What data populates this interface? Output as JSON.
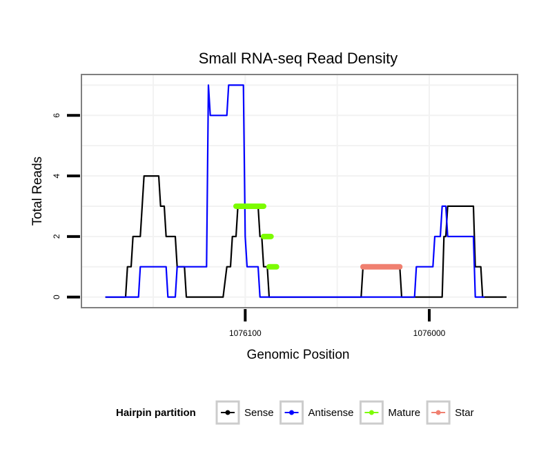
{
  "chart_data": {
    "type": "line",
    "title": "Small RNA-seq Read Density",
    "xlabel": "Genomic Position",
    "ylabel": "Total Reads",
    "x_reversed": true,
    "xlim": [
      1076189,
      1075952
    ],
    "ylim": [
      -0.35,
      7.35
    ],
    "x_ticks": [
      1076100,
      1076000
    ],
    "x_tick_labels": [
      "1076100",
      "1076000"
    ],
    "y_ticks": [
      0,
      2,
      4,
      6
    ],
    "y_tick_labels": [
      "0",
      "2",
      "4",
      "6"
    ],
    "grid": true,
    "legend_position": "bottom",
    "legend": {
      "title": "Hairpin partition",
      "items": [
        {
          "label": "Sense",
          "color": "#000000"
        },
        {
          "label": "Antisense",
          "color": "#0000ff"
        },
        {
          "label": "Mature",
          "color": "#7cfc00"
        },
        {
          "label": "Star",
          "color": "#f08070"
        }
      ]
    },
    "series": [
      {
        "name": "Sense",
        "color": "#000000",
        "points": [
          [
            1076176,
            0
          ],
          [
            1076165,
            0
          ],
          [
            1076164,
            1
          ],
          [
            1076162,
            1
          ],
          [
            1076161,
            2
          ],
          [
            1076157,
            2
          ],
          [
            1076156,
            3
          ],
          [
            1076155,
            4
          ],
          [
            1076147,
            4
          ],
          [
            1076146,
            3
          ],
          [
            1076144,
            3
          ],
          [
            1076143,
            2
          ],
          [
            1076138,
            2
          ],
          [
            1076137,
            1
          ],
          [
            1076133,
            1
          ],
          [
            1076132,
            0
          ],
          [
            1076112,
            0
          ],
          [
            1076110,
            1
          ],
          [
            1076108,
            1
          ],
          [
            1076107,
            2
          ],
          [
            1076105,
            2
          ],
          [
            1076104,
            3
          ],
          [
            1076103,
            3
          ],
          [
            1076101,
            3
          ],
          [
            1076093,
            3
          ],
          [
            1076092,
            2
          ],
          [
            1076091,
            2
          ],
          [
            1076090,
            1
          ],
          [
            1076088,
            1
          ],
          [
            1076087,
            0
          ],
          [
            1076037,
            0
          ],
          [
            1076036,
            1
          ],
          [
            1076016,
            1
          ],
          [
            1076015,
            0
          ],
          [
            1075993,
            0
          ],
          [
            1075992,
            2
          ],
          [
            1075991,
            2
          ],
          [
            1075990,
            3
          ],
          [
            1075989,
            3
          ],
          [
            1075976,
            3
          ],
          [
            1075975,
            1
          ],
          [
            1075972,
            1
          ],
          [
            1075971,
            0
          ],
          [
            1075958,
            0
          ]
        ]
      },
      {
        "name": "Antisense",
        "color": "#0000ff",
        "points": [
          [
            1076176,
            0
          ],
          [
            1076165,
            0
          ],
          [
            1076158,
            0
          ],
          [
            1076157,
            1
          ],
          [
            1076143,
            1
          ],
          [
            1076142,
            0
          ],
          [
            1076138,
            0
          ],
          [
            1076137,
            1
          ],
          [
            1076121,
            1
          ],
          [
            1076120,
            7
          ],
          [
            1076119,
            6
          ],
          [
            1076110,
            6
          ],
          [
            1076109,
            7
          ],
          [
            1076101,
            7
          ],
          [
            1076100,
            2
          ],
          [
            1076099,
            1
          ],
          [
            1076093,
            1
          ],
          [
            1076092,
            0
          ],
          [
            1076036,
            0
          ],
          [
            1076015,
            0
          ],
          [
            1076008,
            0
          ],
          [
            1076007,
            1
          ],
          [
            1075998,
            1
          ],
          [
            1075997,
            2
          ],
          [
            1075994,
            2
          ],
          [
            1075993,
            3
          ],
          [
            1075991,
            3
          ],
          [
            1075990,
            2
          ],
          [
            1075976,
            2
          ],
          [
            1075975,
            0
          ],
          [
            1075970,
            0
          ]
        ]
      },
      {
        "name": "Mature",
        "color": "#7cfc00",
        "points": [
          [
            1076105,
            3
          ],
          [
            1076090,
            3
          ],
          [
            1076090,
            2
          ],
          [
            1076086,
            2
          ],
          [
            1076087,
            1
          ],
          [
            1076083,
            1
          ]
        ]
      },
      {
        "name": "Star",
        "color": "#f08070",
        "points": [
          [
            1076036,
            1
          ],
          [
            1076016,
            1
          ]
        ]
      }
    ]
  }
}
